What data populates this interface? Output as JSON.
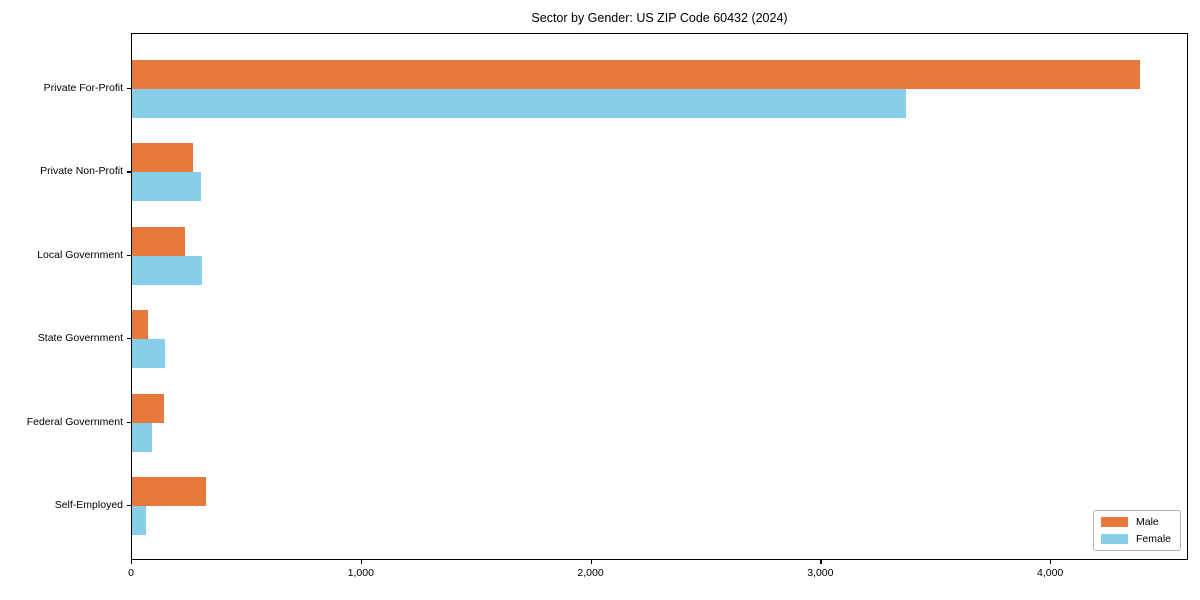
{
  "chart_data": {
    "type": "bar",
    "orientation": "horizontal",
    "title": "Sector by Gender: US ZIP Code 60432 (2024)",
    "categories": [
      "Private For-Profit",
      "Private Non-Profit",
      "Local Government",
      "State Government",
      "Federal Government",
      "Self-Employed"
    ],
    "series": [
      {
        "name": "Male",
        "color": "#E8793C",
        "values": [
          4385,
          265,
          230,
          70,
          140,
          320
        ]
      },
      {
        "name": "Female",
        "color": "#87CEEB",
        "values": [
          3370,
          300,
          305,
          145,
          88,
          60
        ]
      }
    ],
    "xlim": [
      0,
      4600
    ],
    "xticks": [
      0,
      1000,
      2000,
      3000,
      4000
    ],
    "xtick_labels": [
      "0",
      "1,000",
      "2,000",
      "3,000",
      "4,000"
    ],
    "ylabel": "",
    "xlabel": "",
    "grid": false,
    "legend_position": "lower right"
  }
}
